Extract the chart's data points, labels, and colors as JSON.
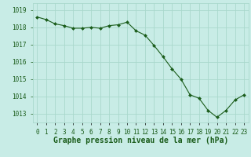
{
  "hours": [
    0,
    1,
    2,
    3,
    4,
    5,
    6,
    7,
    8,
    9,
    10,
    11,
    12,
    13,
    14,
    15,
    16,
    17,
    18,
    19,
    20,
    21,
    22,
    23
  ],
  "pressure": [
    1018.6,
    1018.45,
    1018.2,
    1018.1,
    1017.95,
    1017.95,
    1018.0,
    1017.95,
    1018.1,
    1018.15,
    1018.3,
    1017.8,
    1017.55,
    1016.95,
    1016.3,
    1015.6,
    1015.0,
    1014.1,
    1013.9,
    1013.2,
    1012.8,
    1013.2,
    1013.8,
    1014.1
  ],
  "line_color": "#1a5c1a",
  "marker_color": "#1a5c1a",
  "bg_color": "#c8ece6",
  "grid_color": "#aad8cc",
  "text_color": "#1a5c1a",
  "xlabel": "Graphe pression niveau de la mer (hPa)",
  "yticks": [
    1013,
    1014,
    1015,
    1016,
    1017,
    1018,
    1019
  ],
  "xticks": [
    0,
    1,
    2,
    3,
    4,
    5,
    6,
    7,
    8,
    9,
    10,
    11,
    12,
    13,
    14,
    15,
    16,
    17,
    18,
    19,
    20,
    21,
    22,
    23
  ],
  "ylim": [
    1012.5,
    1019.4
  ],
  "xlim": [
    -0.5,
    23.5
  ],
  "tick_fontsize": 5.5,
  "label_fontsize": 7.0
}
